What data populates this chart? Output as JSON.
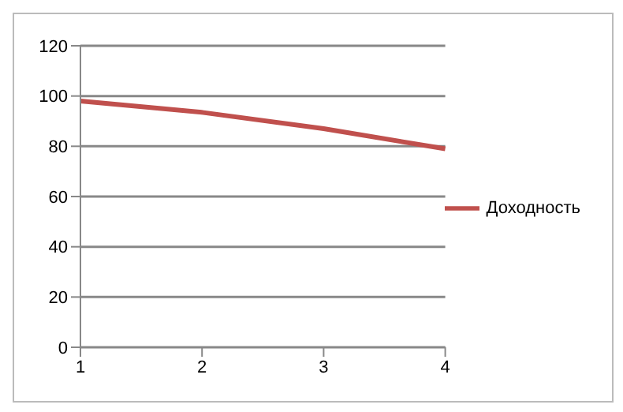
{
  "chart_data": {
    "type": "line",
    "categories": [
      "1",
      "2",
      "3",
      "4"
    ],
    "series": [
      {
        "name": "Доходность",
        "color": "#c0504d",
        "values": [
          98,
          93.5,
          87,
          79
        ]
      }
    ],
    "ylim": [
      0,
      120
    ],
    "yticks": [
      0,
      20,
      40,
      60,
      80,
      100,
      120
    ],
    "grid": "y",
    "legend": "right",
    "marker": "none"
  }
}
